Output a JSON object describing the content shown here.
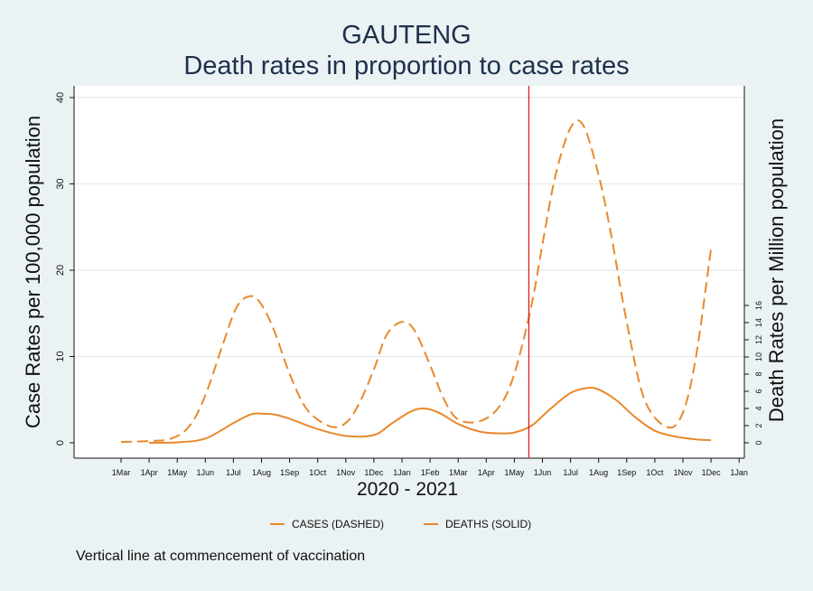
{
  "title": {
    "line1": "GAUTENG",
    "line2": "Death rates in proportion to case rates"
  },
  "colors": {
    "series": "#e8892a",
    "vaccination_line": "#d62020",
    "background": "#eaf2f3",
    "plot_background": "#ffffff",
    "grid": "#e6e6e6"
  },
  "legend": {
    "cases_label": "CASES (DASHED)",
    "deaths_label": "DEATHS (SOLID)"
  },
  "note": "Vertical line at commencement of vaccination",
  "chart_data": {
    "type": "line",
    "title": "GAUTENG",
    "subtitle": "Death rates in proportion to case rates",
    "xlabel": "2020 - 2021",
    "ylabel": "Case Rates per 100,000 population",
    "y2label": "Death Rates per Million population",
    "ylim": [
      0,
      40
    ],
    "y2lim": [
      0,
      16
    ],
    "y_ticks": [
      0,
      10,
      20,
      30,
      40
    ],
    "y2_ticks": [
      0,
      2,
      4,
      6,
      8,
      10,
      12,
      14,
      16
    ],
    "grid": true,
    "legend_position": "bottom",
    "x_tick_labels": [
      "1Mar",
      "1Apr",
      "1May",
      "1Jun",
      "1Jul",
      "1Aug",
      "1Sep",
      "1Oct",
      "1Nov",
      "1Dec",
      "1Jan",
      "1Feb",
      "1Mar",
      "1Apr",
      "1May",
      "1Jun",
      "1Jul",
      "1Aug",
      "1Sep",
      "1Oct",
      "1Nov",
      "1Dec",
      "1Jan"
    ],
    "x_tick_dates": [
      "2020-03-01",
      "2020-04-01",
      "2020-05-01",
      "2020-06-01",
      "2020-07-01",
      "2020-08-01",
      "2020-09-01",
      "2020-10-01",
      "2020-11-01",
      "2020-12-01",
      "2021-01-01",
      "2021-02-01",
      "2021-03-01",
      "2021-04-01",
      "2021-05-01",
      "2021-06-01",
      "2021-07-01",
      "2021-08-01",
      "2021-09-01",
      "2021-10-01",
      "2021-11-01",
      "2021-12-01",
      "2022-01-01"
    ],
    "vaccination_date": "2021-05-17",
    "series": [
      {
        "name": "CASES (DASHED)",
        "axis": "left",
        "style": "dashed",
        "x": [
          "2020-03-01",
          "2020-04-01",
          "2020-04-25",
          "2020-05-15",
          "2020-06-01",
          "2020-06-20",
          "2020-07-05",
          "2020-07-20",
          "2020-08-01",
          "2020-08-15",
          "2020-09-01",
          "2020-09-20",
          "2020-10-15",
          "2020-11-01",
          "2020-11-15",
          "2020-12-01",
          "2020-12-15",
          "2021-01-01",
          "2021-01-15",
          "2021-02-01",
          "2021-02-15",
          "2021-03-01",
          "2021-03-25",
          "2021-04-15",
          "2021-05-01",
          "2021-05-20",
          "2021-06-01",
          "2021-06-15",
          "2021-07-01",
          "2021-07-15",
          "2021-08-01",
          "2021-08-15",
          "2021-09-01",
          "2021-09-20",
          "2021-10-15",
          "2021-11-01",
          "2021-11-15",
          "2021-12-01"
        ],
        "y": [
          0.1,
          0.2,
          0.5,
          2,
          5.5,
          11.5,
          15.8,
          17,
          16,
          13,
          8,
          3.8,
          1.9,
          2.3,
          4.5,
          8.5,
          12.5,
          14,
          13,
          9,
          5,
          2.7,
          2.5,
          4.2,
          8,
          16,
          23,
          31,
          36.5,
          36.8,
          31,
          24,
          14,
          5,
          1.8,
          3.5,
          10,
          22.5
        ]
      },
      {
        "name": "DEATHS (SOLID)",
        "axis": "right",
        "style": "solid",
        "x": [
          "2020-04-01",
          "2020-05-01",
          "2020-06-01",
          "2020-07-01",
          "2020-07-20",
          "2020-08-01",
          "2020-08-15",
          "2020-09-01",
          "2020-10-01",
          "2020-11-01",
          "2020-12-01",
          "2020-12-20",
          "2021-01-10",
          "2021-01-25",
          "2021-02-10",
          "2021-03-01",
          "2021-03-25",
          "2021-04-15",
          "2021-05-01",
          "2021-05-20",
          "2021-06-10",
          "2021-07-01",
          "2021-07-20",
          "2021-08-01",
          "2021-08-20",
          "2021-09-10",
          "2021-10-01",
          "2021-10-25",
          "2021-11-15",
          "2021-12-01"
        ],
        "y": [
          0,
          0.05,
          0.5,
          2.3,
          3.3,
          3.4,
          3.3,
          2.8,
          1.6,
          0.8,
          0.9,
          2.2,
          3.6,
          4.0,
          3.5,
          2.2,
          1.3,
          1.1,
          1.2,
          2.0,
          4.0,
          5.8,
          6.4,
          6.2,
          5.0,
          3.0,
          1.4,
          0.7,
          0.4,
          0.3
        ]
      }
    ]
  }
}
